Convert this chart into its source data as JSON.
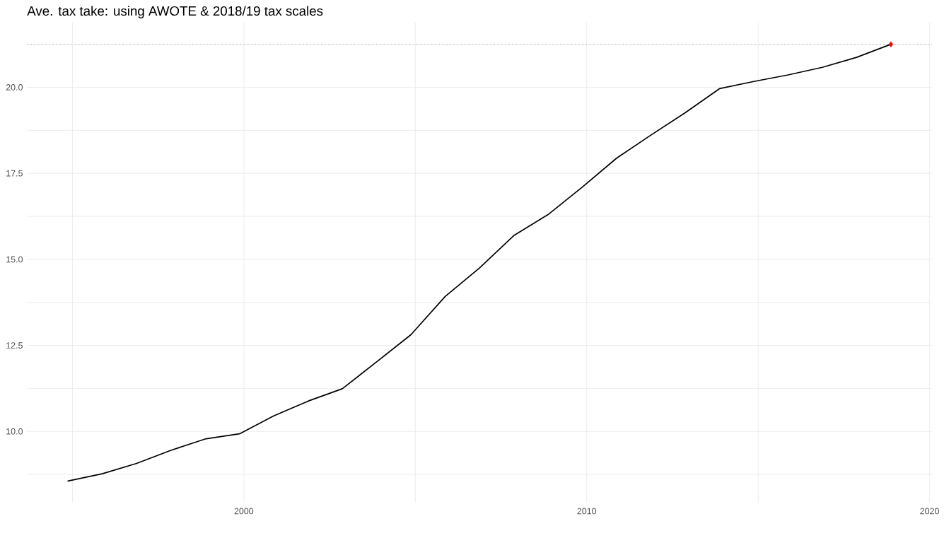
{
  "chart_data": {
    "type": "line",
    "title": "Ave. tax take: using AWOTE & 2018/19 tax scales",
    "series": [
      {
        "color": "#000000",
        "x": [
          "1994-11-15",
          "1995-11-15",
          "1996-11-15",
          "1997-11-15",
          "1998-11-15",
          "1999-11-15",
          "2000-11-15",
          "2001-11-15",
          "2002-11-15",
          "2003-11-15",
          "2004-11-15",
          "2005-11-15",
          "2006-11-15",
          "2007-11-15",
          "2008-11-15",
          "2009-11-15",
          "2010-11-15",
          "2011-11-15",
          "2012-11-15",
          "2013-11-15",
          "2014-11-15",
          "2015-11-15",
          "2016-11-15",
          "2017-11-15",
          "2018-11-15"
        ],
        "values": [
          8.56,
          8.77,
          9.07,
          9.45,
          9.78,
          9.93,
          10.45,
          10.88,
          11.24,
          12.02,
          12.81,
          13.92,
          14.75,
          15.69,
          16.3,
          17.1,
          17.94,
          18.61,
          19.26,
          19.96,
          20.17,
          20.36,
          20.58,
          20.87,
          21.25
        ]
      },
      {
        "type": "scatter",
        "color": "#ff0000",
        "marker": "diamond",
        "x": [
          "2018-11-15"
        ],
        "values": [
          21.25
        ]
      }
    ],
    "xlim": [
      "1993-09-03",
      "2020-01-27"
    ],
    "ylim": [
      7.93,
      21.88
    ],
    "xticks": [
      {
        "value": "1995",
        "label": null
      },
      "2000",
      {
        "value": "2005",
        "label": null
      },
      "2010",
      {
        "value": "2015",
        "label": null
      },
      "2020"
    ],
    "yticks": [
      {
        "value": 8.75,
        "label": null
      },
      {
        "value": 10,
        "label": "10.0"
      },
      {
        "value": 11.25,
        "label": null
      },
      {
        "value": 12.5,
        "label": "12.5"
      },
      {
        "value": 13.75,
        "label": null
      },
      {
        "value": 15,
        "label": "15.0"
      },
      {
        "value": 16.25,
        "label": null
      },
      {
        "value": 17.5,
        "label": "17.5"
      },
      {
        "value": 18.75,
        "label": null
      },
      {
        "value": 20,
        "label": "20.0"
      },
      {
        "value": 21.25,
        "label": null
      }
    ],
    "grid": true,
    "ref_lines": [
      {
        "axis": "y",
        "value": 21.25,
        "color": "#bebebe",
        "line_style": "dotted"
      }
    ]
  }
}
